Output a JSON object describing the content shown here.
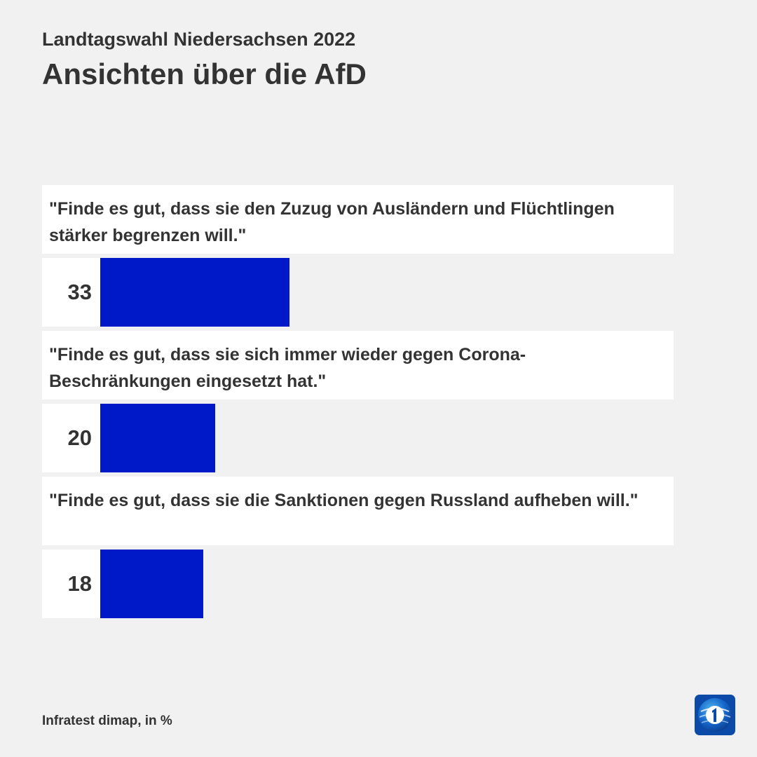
{
  "header": {
    "subtitle": "Landtagswahl Niedersachsen 2022",
    "title": "Ansichten über die AfD"
  },
  "chart_data": {
    "type": "bar",
    "orientation": "horizontal",
    "categories": [
      "\"Finde es gut, dass sie den Zuzug von Ausländern und Flüchtlingen stärker begrenzen will.\"",
      "\"Finde es gut, dass sie sich immer wieder gegen Corona-Beschränkungen eingesetzt hat.\"",
      "\"Finde es gut, dass sie die Sanktionen gegen Russland aufheben will.\""
    ],
    "values": [
      33,
      20,
      18
    ],
    "xlim": [
      0,
      100
    ],
    "bar_color": "#0019c8",
    "grid": false,
    "legend": "none"
  },
  "footer": {
    "source": "Infratest dimap, in %",
    "logo_icon": "tagesschau-logo-icon"
  }
}
